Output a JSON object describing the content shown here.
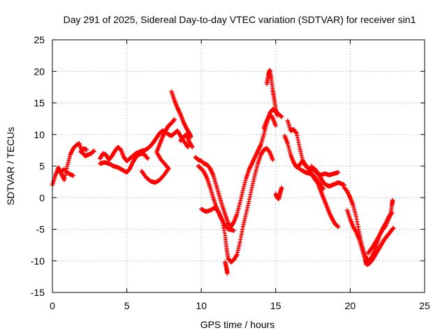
{
  "chart_data": {
    "type": "scatter",
    "title": "Day 291 of 2025, Sidereal Day-to-day VTEC variation (SDTVAR) for receiver sin1",
    "xlabel": "GPS time / hours",
    "ylabel": "SDTVAR / TECUs",
    "xlim": [
      0,
      25
    ],
    "ylim": [
      -15,
      25
    ],
    "xticks": [
      0,
      5,
      10,
      15,
      20,
      25
    ],
    "yticks": [
      -15,
      -10,
      -5,
      0,
      5,
      10,
      15,
      20,
      25
    ],
    "grid": true,
    "marker": "+",
    "color": "#ff0000",
    "series": [
      {
        "name": "track-a",
        "points": [
          [
            0.0,
            2.0
          ],
          [
            0.2,
            3.5
          ],
          [
            0.4,
            4.8
          ],
          [
            0.6,
            3.8
          ],
          [
            0.8,
            2.8
          ],
          [
            1.0,
            5.0
          ],
          [
            1.2,
            6.8
          ],
          [
            1.4,
            7.8
          ],
          [
            1.6,
            8.3
          ],
          [
            1.8,
            8.6
          ],
          [
            2.0,
            7.2
          ],
          [
            2.2,
            6.6
          ],
          [
            2.4,
            6.8
          ],
          [
            2.6,
            7.0
          ],
          [
            2.8,
            7.4
          ]
        ]
      },
      {
        "name": "track-b",
        "points": [
          [
            0.5,
            4.0
          ],
          [
            0.8,
            4.5
          ],
          [
            1.1,
            3.8
          ],
          [
            1.4,
            3.5
          ]
        ]
      },
      {
        "name": "track-c",
        "points": [
          [
            1.9,
            7.2
          ],
          [
            2.1,
            7.8
          ],
          [
            2.3,
            7.6
          ]
        ]
      },
      {
        "name": "track-d",
        "points": [
          [
            3.2,
            6.2
          ],
          [
            3.4,
            7.0
          ],
          [
            3.6,
            6.8
          ],
          [
            3.8,
            6.0
          ],
          [
            4.0,
            6.6
          ],
          [
            4.2,
            7.4
          ],
          [
            4.4,
            8.0
          ],
          [
            4.6,
            7.6
          ],
          [
            4.8,
            6.4
          ],
          [
            5.0,
            5.8
          ],
          [
            5.2,
            6.2
          ],
          [
            5.4,
            6.6
          ],
          [
            5.6,
            7.0
          ],
          [
            5.8,
            7.2
          ],
          [
            6.0,
            7.4
          ],
          [
            6.2,
            7.5
          ],
          [
            6.4,
            7.8
          ],
          [
            6.6,
            8.2
          ],
          [
            6.8,
            8.8
          ],
          [
            7.0,
            9.5
          ],
          [
            7.2,
            10.2
          ],
          [
            7.4,
            10.6
          ],
          [
            7.6,
            10.4
          ],
          [
            7.8,
            10.0
          ],
          [
            8.0,
            9.8
          ],
          [
            8.2,
            10.2
          ],
          [
            8.4,
            10.6
          ],
          [
            8.6,
            9.8
          ],
          [
            8.8,
            9.0
          ],
          [
            9.0,
            8.4
          ],
          [
            9.1,
            8.0
          ]
        ]
      },
      {
        "name": "track-e",
        "points": [
          [
            3.2,
            5.4
          ],
          [
            3.5,
            5.6
          ],
          [
            3.8,
            5.4
          ],
          [
            4.1,
            5.0
          ],
          [
            4.4,
            4.8
          ],
          [
            4.7,
            4.4
          ],
          [
            5.0,
            4.0
          ],
          [
            5.2,
            4.6
          ],
          [
            5.4,
            5.6
          ],
          [
            5.6,
            6.4
          ],
          [
            5.8,
            6.8
          ],
          [
            6.0,
            7.0
          ],
          [
            6.2,
            6.8
          ],
          [
            6.4,
            6.2
          ]
        ]
      },
      {
        "name": "track-f",
        "points": [
          [
            6.0,
            4.2
          ],
          [
            6.3,
            3.2
          ],
          [
            6.6,
            2.6
          ],
          [
            6.9,
            2.4
          ],
          [
            7.2,
            2.8
          ],
          [
            7.5,
            3.6
          ],
          [
            7.8,
            4.6
          ],
          [
            7.6,
            5.2
          ],
          [
            7.3,
            6.0
          ],
          [
            7.0,
            7.2
          ],
          [
            7.2,
            8.4
          ],
          [
            7.4,
            9.6
          ],
          [
            7.6,
            10.6
          ],
          [
            7.8,
            11.4
          ],
          [
            8.0,
            11.8
          ],
          [
            8.2,
            12.4
          ]
        ]
      },
      {
        "name": "track-g",
        "points": [
          [
            8.0,
            16.8
          ],
          [
            8.2,
            15.4
          ],
          [
            8.4,
            14.2
          ],
          [
            8.6,
            13.2
          ],
          [
            8.8,
            12.0
          ],
          [
            9.0,
            11.0
          ],
          [
            9.2,
            10.2
          ],
          [
            9.3,
            9.6
          ]
        ]
      },
      {
        "name": "track-h",
        "points": [
          [
            8.6,
            9.0
          ],
          [
            8.8,
            9.6
          ],
          [
            9.0,
            10.0
          ],
          [
            9.2,
            8.8
          ],
          [
            9.4,
            8.0
          ]
        ]
      },
      {
        "name": "track-i",
        "points": [
          [
            9.6,
            6.4
          ],
          [
            9.8,
            6.0
          ],
          [
            10.0,
            5.8
          ],
          [
            10.2,
            5.4
          ],
          [
            10.4,
            5.2
          ],
          [
            10.6,
            4.6
          ],
          [
            10.8,
            3.6
          ],
          [
            11.0,
            2.0
          ],
          [
            11.2,
            0.4
          ],
          [
            11.4,
            -1.2
          ],
          [
            11.6,
            -2.6
          ],
          [
            11.8,
            -4.0
          ],
          [
            12.0,
            -4.6
          ],
          [
            12.2,
            -3.8
          ],
          [
            12.4,
            -2.6
          ],
          [
            12.6,
            -0.8
          ],
          [
            12.8,
            1.2
          ],
          [
            13.0,
            3.0
          ],
          [
            13.2,
            4.4
          ],
          [
            13.4,
            5.4
          ],
          [
            13.6,
            6.4
          ],
          [
            13.8,
            7.4
          ],
          [
            14.0,
            8.4
          ],
          [
            14.2,
            10.0
          ],
          [
            14.4,
            11.8
          ],
          [
            14.6,
            13.4
          ],
          [
            14.8,
            14.0
          ],
          [
            15.0,
            13.6
          ],
          [
            15.2,
            13.2
          ],
          [
            15.4,
            12.8
          ]
        ]
      },
      {
        "name": "track-j",
        "points": [
          [
            9.8,
            5.0
          ],
          [
            10.0,
            4.6
          ],
          [
            10.2,
            4.0
          ],
          [
            10.4,
            3.0
          ],
          [
            10.6,
            1.6
          ],
          [
            10.8,
            0.0
          ],
          [
            11.0,
            -1.4
          ],
          [
            11.2,
            -2.6
          ],
          [
            11.4,
            -3.6
          ],
          [
            11.6,
            -6.0
          ],
          [
            11.7,
            -8.0
          ],
          [
            11.8,
            -9.6
          ],
          [
            12.0,
            -10.2
          ],
          [
            12.2,
            -9.8
          ],
          [
            12.4,
            -9.0
          ],
          [
            12.6,
            -7.0
          ],
          [
            12.8,
            -4.6
          ],
          [
            13.0,
            -2.6
          ],
          [
            13.2,
            -0.6
          ],
          [
            13.4,
            1.6
          ],
          [
            13.6,
            3.6
          ],
          [
            13.8,
            5.4
          ],
          [
            14.0,
            6.8
          ],
          [
            14.2,
            7.6
          ],
          [
            14.4,
            7.8
          ],
          [
            14.6,
            7.2
          ],
          [
            14.8,
            6.0
          ]
        ]
      },
      {
        "name": "track-k",
        "points": [
          [
            11.6,
            -10.2
          ],
          [
            11.7,
            -11.2
          ],
          [
            11.75,
            -12.0
          ]
        ]
      },
      {
        "name": "track-l",
        "points": [
          [
            10.0,
            -1.8
          ],
          [
            10.3,
            -2.2
          ],
          [
            10.6,
            -2.0
          ],
          [
            10.9,
            -1.6
          ],
          [
            11.2,
            -2.4
          ],
          [
            11.5,
            -4.0
          ],
          [
            11.8,
            -5.0
          ],
          [
            12.2,
            -5.2
          ]
        ]
      },
      {
        "name": "track-m",
        "points": [
          [
            14.4,
            18.0
          ],
          [
            14.5,
            19.4
          ],
          [
            14.6,
            20.2
          ],
          [
            14.7,
            18.8
          ],
          [
            14.8,
            17.0
          ],
          [
            14.9,
            15.6
          ],
          [
            15.0,
            14.0
          ],
          [
            15.1,
            13.0
          ]
        ]
      },
      {
        "name": "track-n",
        "points": [
          [
            14.2,
            11.0
          ],
          [
            14.4,
            12.2
          ],
          [
            14.6,
            13.2
          ],
          [
            14.8,
            12.6
          ],
          [
            15.0,
            11.4
          ]
        ]
      },
      {
        "name": "track-o",
        "points": [
          [
            15.0,
            0.6
          ],
          [
            15.1,
            0.0
          ],
          [
            15.2,
            -0.2
          ],
          [
            15.3,
            0.8
          ],
          [
            15.4,
            1.6
          ]
        ]
      },
      {
        "name": "track-p",
        "points": [
          [
            15.8,
            12.2
          ],
          [
            16.0,
            10.6
          ],
          [
            16.2,
            10.8
          ],
          [
            16.4,
            10.2
          ],
          [
            16.6,
            8.0
          ],
          [
            16.8,
            6.0
          ],
          [
            17.0,
            5.0
          ],
          [
            17.2,
            4.6
          ],
          [
            17.4,
            4.4
          ],
          [
            17.6,
            4.6
          ],
          [
            17.8,
            4.0
          ],
          [
            18.0,
            3.2
          ],
          [
            18.2,
            2.4
          ],
          [
            18.4,
            2.0
          ],
          [
            18.6,
            1.8
          ],
          [
            18.8,
            2.0
          ],
          [
            19.0,
            2.2
          ],
          [
            19.2,
            2.4
          ],
          [
            19.4,
            2.2
          ],
          [
            19.6,
            2.0
          ]
        ]
      },
      {
        "name": "track-q",
        "points": [
          [
            15.6,
            9.8
          ],
          [
            15.8,
            8.6
          ],
          [
            16.0,
            6.8
          ],
          [
            16.2,
            5.6
          ],
          [
            16.4,
            4.8
          ],
          [
            16.6,
            5.2
          ],
          [
            16.8,
            5.8
          ],
          [
            17.0,
            5.2
          ],
          [
            17.2,
            4.6
          ],
          [
            17.4,
            3.8
          ],
          [
            17.6,
            3.0
          ],
          [
            17.8,
            2.4
          ],
          [
            18.0,
            1.2
          ],
          [
            18.2,
            0.0
          ],
          [
            18.4,
            -1.2
          ],
          [
            18.6,
            -2.4
          ],
          [
            18.8,
            -3.4
          ],
          [
            19.0,
            -4.2
          ],
          [
            19.2,
            -4.6
          ]
        ]
      },
      {
        "name": "track-r",
        "points": [
          [
            16.4,
            5.0
          ],
          [
            16.7,
            4.4
          ],
          [
            17.0,
            4.0
          ],
          [
            17.3,
            3.8
          ],
          [
            17.6,
            3.4
          ],
          [
            17.9,
            2.4
          ],
          [
            18.2,
            1.4
          ]
        ]
      },
      {
        "name": "track-s",
        "points": [
          [
            17.4,
            5.0
          ],
          [
            17.7,
            4.0
          ],
          [
            18.0,
            3.6
          ],
          [
            18.3,
            3.8
          ],
          [
            18.6,
            3.6
          ],
          [
            18.9,
            3.8
          ],
          [
            19.2,
            4.0
          ]
        ]
      },
      {
        "name": "track-t",
        "points": [
          [
            19.6,
            1.6
          ],
          [
            19.8,
            1.0
          ],
          [
            20.0,
            0.0
          ],
          [
            20.2,
            -1.2
          ],
          [
            20.4,
            -3.0
          ],
          [
            20.6,
            -5.4
          ],
          [
            20.8,
            -7.6
          ],
          [
            21.0,
            -9.2
          ],
          [
            21.2,
            -10.0
          ],
          [
            21.4,
            -9.6
          ],
          [
            21.6,
            -8.6
          ],
          [
            21.8,
            -7.2
          ],
          [
            22.0,
            -5.8
          ],
          [
            22.2,
            -4.8
          ],
          [
            22.4,
            -4.0
          ],
          [
            22.6,
            -3.0
          ],
          [
            22.8,
            -2.4
          ]
        ]
      },
      {
        "name": "track-u",
        "points": [
          [
            19.8,
            -2.0
          ],
          [
            20.0,
            -3.4
          ],
          [
            20.2,
            -4.6
          ],
          [
            20.4,
            -5.4
          ],
          [
            20.6,
            -6.6
          ],
          [
            20.8,
            -8.2
          ],
          [
            21.0,
            -9.8
          ],
          [
            21.1,
            -10.6
          ],
          [
            21.3,
            -10.4
          ],
          [
            21.5,
            -9.8
          ],
          [
            21.7,
            -9.0
          ],
          [
            21.9,
            -8.2
          ],
          [
            22.1,
            -7.4
          ],
          [
            22.3,
            -6.6
          ],
          [
            22.5,
            -6.0
          ],
          [
            22.7,
            -5.4
          ],
          [
            22.9,
            -4.8
          ]
        ]
      },
      {
        "name": "track-v",
        "points": [
          [
            21.2,
            -8.8
          ],
          [
            21.5,
            -7.8
          ],
          [
            21.8,
            -6.6
          ],
          [
            22.1,
            -5.4
          ],
          [
            22.4,
            -4.4
          ],
          [
            22.7,
            -2.8
          ],
          [
            22.8,
            -1.2
          ],
          [
            22.85,
            -0.4
          ]
        ]
      }
    ]
  }
}
